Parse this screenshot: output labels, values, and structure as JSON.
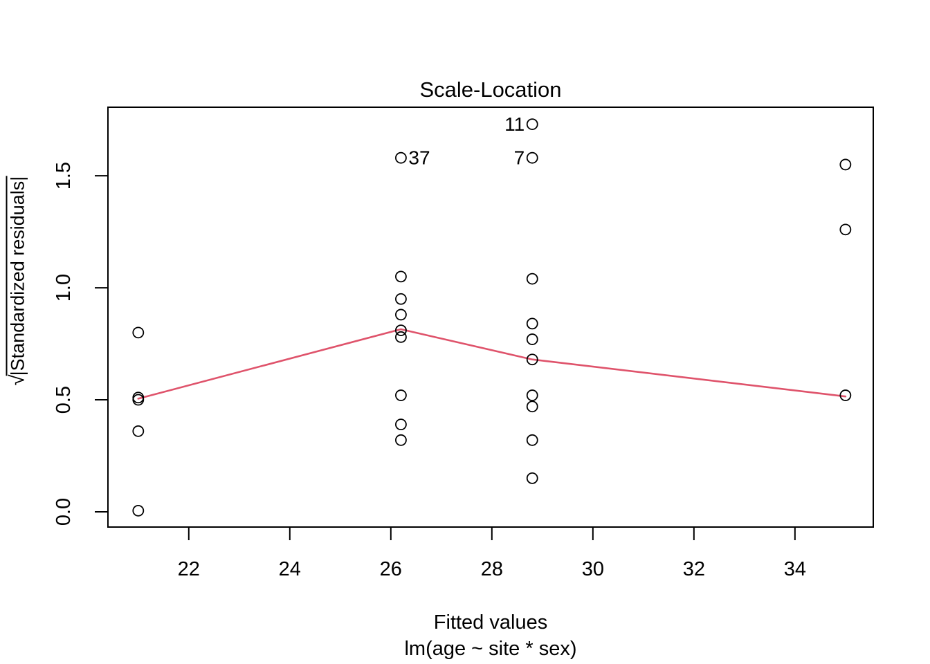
{
  "chart_data": {
    "type": "scatter",
    "title": "Scale-Location",
    "xlabel": "Fitted values",
    "model_label": "lm(age ~ site * sex)",
    "ylabel": {
      "radical": "√",
      "expression": "|Standardized residuals|"
    },
    "x_ticks": [
      "22",
      "24",
      "26",
      "28",
      "30",
      "32",
      "34"
    ],
    "x_tick_values": [
      22,
      24,
      26,
      28,
      30,
      32,
      34
    ],
    "y_ticks": [
      "0.0",
      "0.5",
      "1.0",
      "1.5"
    ],
    "y_tick_values": [
      0.0,
      0.5,
      1.0,
      1.5
    ],
    "xlim": [
      20.4,
      35.55
    ],
    "ylim": [
      -0.068,
      1.806
    ],
    "grid": false,
    "legend": "none",
    "point_color": "#000000",
    "axis_color": "#000000",
    "smooth_color": "#DF536B",
    "points": [
      {
        "x": 21.0,
        "y": 0.8
      },
      {
        "x": 21.0,
        "y": 0.51
      },
      {
        "x": 21.0,
        "y": 0.5
      },
      {
        "x": 21.0,
        "y": 0.36
      },
      {
        "x": 21.0,
        "y": 0.005
      },
      {
        "x": 26.2,
        "y": 1.58,
        "label": "37",
        "label_side": "right"
      },
      {
        "x": 26.2,
        "y": 1.05
      },
      {
        "x": 26.2,
        "y": 0.95
      },
      {
        "x": 26.2,
        "y": 0.88
      },
      {
        "x": 26.2,
        "y": 0.81
      },
      {
        "x": 26.2,
        "y": 0.78
      },
      {
        "x": 26.2,
        "y": 0.52
      },
      {
        "x": 26.2,
        "y": 0.39
      },
      {
        "x": 26.2,
        "y": 0.32
      },
      {
        "x": 28.8,
        "y": 1.73,
        "label": "11",
        "label_side": "left"
      },
      {
        "x": 28.8,
        "y": 1.58,
        "label": "7",
        "label_side": "left"
      },
      {
        "x": 28.8,
        "y": 1.04
      },
      {
        "x": 28.8,
        "y": 0.84
      },
      {
        "x": 28.8,
        "y": 0.77
      },
      {
        "x": 28.8,
        "y": 0.68
      },
      {
        "x": 28.8,
        "y": 0.52
      },
      {
        "x": 28.8,
        "y": 0.47
      },
      {
        "x": 28.8,
        "y": 0.32
      },
      {
        "x": 28.8,
        "y": 0.15
      },
      {
        "x": 35.0,
        "y": 1.55
      },
      {
        "x": 35.0,
        "y": 1.26
      },
      {
        "x": 35.0,
        "y": 0.52
      }
    ],
    "smooth_line": [
      {
        "x": 21.0,
        "y": 0.505
      },
      {
        "x": 26.2,
        "y": 0.815
      },
      {
        "x": 28.8,
        "y": 0.68
      },
      {
        "x": 35.0,
        "y": 0.515
      }
    ]
  }
}
